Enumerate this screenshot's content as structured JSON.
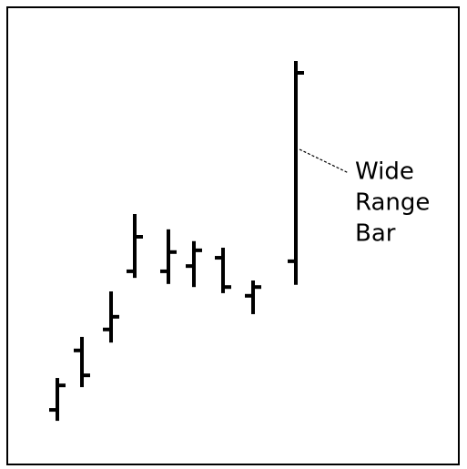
{
  "chart_data": {
    "type": "ohlc",
    "x": [
      53,
      80,
      112,
      138,
      175,
      203,
      235,
      268,
      315
    ],
    "xlim": [
      0,
      495
    ],
    "ylim": [
      0,
      100
    ],
    "color": "#000000",
    "series": [
      {
        "name": "open",
        "values": [
          10.4,
          24,
          28.8,
          42.1,
          42.1,
          43.3,
          45.2,
          36.5,
          44.4
        ]
      },
      {
        "name": "high",
        "values": [
          17.7,
          27.1,
          37.5,
          55.2,
          51.7,
          49,
          47.5,
          40,
          90.2
        ]
      },
      {
        "name": "low",
        "values": [
          7.9,
          15.6,
          25.8,
          40.6,
          39.2,
          38.5,
          37.1,
          32.3,
          39
        ]
      },
      {
        "name": "close",
        "values": [
          16,
          18.3,
          31.7,
          50,
          46.5,
          46.9,
          38.5,
          38.5,
          87.5
        ]
      }
    ],
    "annotation": {
      "lines": [
        "Wide",
        "Range",
        "Bar"
      ],
      "x": 315,
      "y": 70
    }
  }
}
